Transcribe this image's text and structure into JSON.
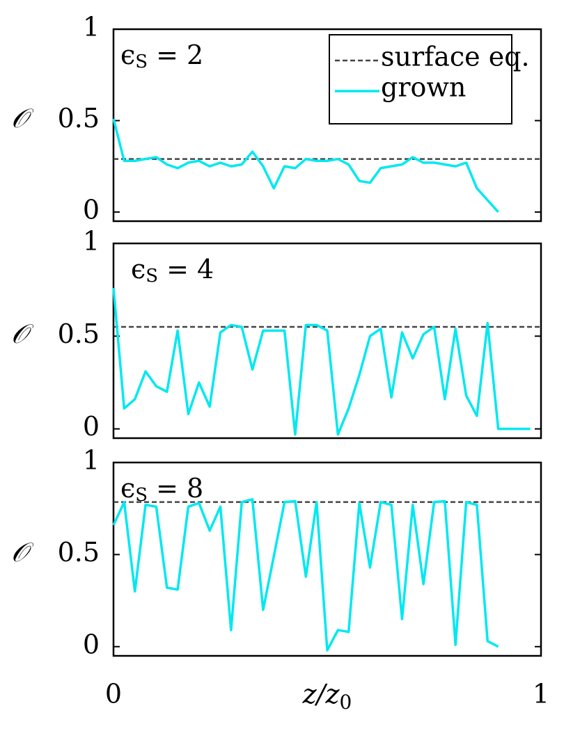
{
  "chart_data": [
    {
      "type": "line",
      "label": "ϵ",
      "label_sub": "S",
      "label_rest": "= 2",
      "y_label": "𝒪",
      "xlim": [
        0,
        1
      ],
      "ylim": [
        -0.05,
        1
      ],
      "yticks": [
        0,
        0.5,
        1
      ],
      "legend": "upper right",
      "series": [
        {
          "name": "surface eq.",
          "color": "#444444",
          "dashed": true,
          "x": [
            0,
            1
          ],
          "values": [
            0.29,
            0.29
          ]
        },
        {
          "name": "grown",
          "color": "#00e8f0",
          "x": [
            0,
            0.025,
            0.05,
            0.075,
            0.1,
            0.125,
            0.15,
            0.175,
            0.2,
            0.225,
            0.25,
            0.275,
            0.3,
            0.325,
            0.35,
            0.375,
            0.4,
            0.425,
            0.45,
            0.475,
            0.5,
            0.525,
            0.55,
            0.575,
            0.6,
            0.625,
            0.65,
            0.675,
            0.7,
            0.725,
            0.75,
            0.775,
            0.8,
            0.825,
            0.85,
            0.9
          ],
          "values": [
            0.51,
            0.28,
            0.28,
            0.29,
            0.3,
            0.26,
            0.24,
            0.27,
            0.28,
            0.25,
            0.27,
            0.25,
            0.26,
            0.33,
            0.25,
            0.13,
            0.25,
            0.24,
            0.29,
            0.28,
            0.28,
            0.29,
            0.26,
            0.17,
            0.16,
            0.24,
            0.25,
            0.26,
            0.3,
            0.27,
            0.27,
            0.26,
            0.25,
            0.27,
            0.13,
            0
          ]
        }
      ]
    },
    {
      "type": "line",
      "label": "ϵ",
      "label_sub": "S",
      "label_rest": "= 4",
      "y_label": "𝒪",
      "xlim": [
        0,
        1
      ],
      "ylim": [
        -0.05,
        1
      ],
      "yticks": [
        0,
        0.5,
        1
      ],
      "series": [
        {
          "color": "#444444",
          "dashed": true,
          "x": [
            0,
            1
          ],
          "values": [
            0.55,
            0.55
          ]
        },
        {
          "color": "#00e8f0",
          "x": [
            0,
            0.025,
            0.05,
            0.075,
            0.1,
            0.125,
            0.15,
            0.175,
            0.2,
            0.225,
            0.25,
            0.275,
            0.3,
            0.325,
            0.35,
            0.375,
            0.4,
            0.425,
            0.45,
            0.475,
            0.5,
            0.525,
            0.55,
            0.575,
            0.6,
            0.625,
            0.65,
            0.675,
            0.7,
            0.725,
            0.75,
            0.775,
            0.8,
            0.825,
            0.85,
            0.875,
            0.9,
            0.975
          ],
          "values": [
            0.76,
            0.11,
            0.16,
            0.31,
            0.23,
            0.2,
            0.53,
            0.08,
            0.25,
            0.12,
            0.52,
            0.56,
            0.55,
            0.32,
            0.53,
            0.53,
            0.53,
            -0.03,
            0.56,
            0.56,
            0.53,
            -0.03,
            0.11,
            0.29,
            0.5,
            0.54,
            0.17,
            0.52,
            0.38,
            0.51,
            0.55,
            0.16,
            0.54,
            0.18,
            0.07,
            0.57,
            0,
            0
          ]
        }
      ]
    },
    {
      "type": "line",
      "label": "ϵ",
      "label_sub": "S",
      "label_rest": "= 8",
      "y_label": "𝒪",
      "x_label": "z/z",
      "x_label_sub": "0",
      "xlim": [
        0,
        1
      ],
      "xticks": [
        0,
        1
      ],
      "ylim": [
        -0.05,
        1
      ],
      "yticks": [
        0,
        0.5,
        1
      ],
      "series": [
        {
          "color": "#444444",
          "dashed": true,
          "x": [
            0,
            1
          ],
          "values": [
            0.785,
            0.785
          ]
        },
        {
          "color": "#00e8f0",
          "x": [
            0,
            0.025,
            0.05,
            0.075,
            0.1,
            0.125,
            0.15,
            0.175,
            0.2,
            0.225,
            0.25,
            0.275,
            0.3,
            0.325,
            0.35,
            0.375,
            0.4,
            0.425,
            0.45,
            0.475,
            0.5,
            0.525,
            0.55,
            0.575,
            0.6,
            0.625,
            0.65,
            0.675,
            0.7,
            0.725,
            0.75,
            0.775,
            0.8,
            0.825,
            0.85,
            0.875,
            0.9
          ],
          "values": [
            0.66,
            0.785,
            0.3,
            0.77,
            0.76,
            0.32,
            0.31,
            0.76,
            0.78,
            0.63,
            0.76,
            0.09,
            0.785,
            0.8,
            0.2,
            0.49,
            0.785,
            0.79,
            0.38,
            0.785,
            -0.02,
            0.09,
            0.08,
            0.78,
            0.43,
            0.785,
            0.77,
            0.15,
            0.77,
            0.34,
            0.785,
            0.79,
            0.01,
            0.785,
            0.77,
            0.03,
            0
          ]
        }
      ]
    }
  ]
}
